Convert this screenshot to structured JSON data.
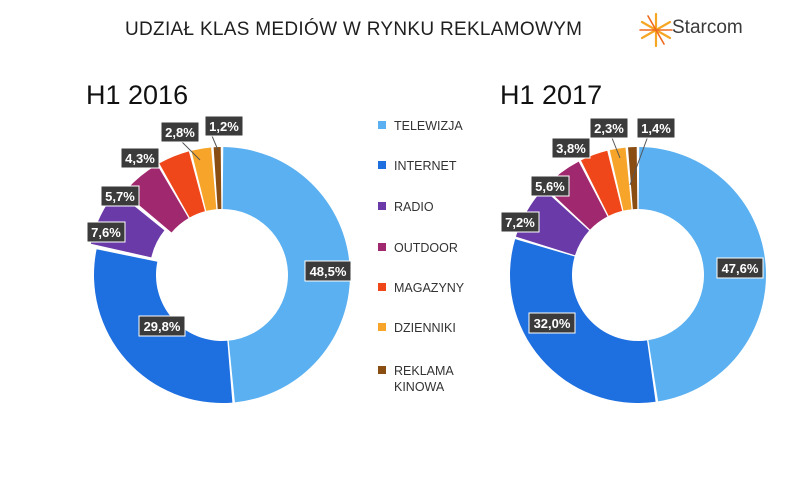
{
  "header": {
    "title": "UDZIAŁ KLAS MEDIÓW  W RYNKU REKLAMOWYM",
    "logo_text": "Starcom",
    "logo_icon": "starcom-star-icon"
  },
  "colors": {
    "TELEWIZJA": "#5AB0F0",
    "INTERNET": "#1E6FE0",
    "RADIO": "#6A3AA8",
    "OUTDOOR": "#A0286E",
    "MAGAZYNY": "#F0471A",
    "DZIENNIKI": "#F7A52A",
    "REKLAMA KINOWA": "#8A4E12"
  },
  "chart_data": [
    {
      "type": "pie",
      "subtype": "donut",
      "title": "H1 2016",
      "categories": [
        "TELEWIZJA",
        "INTERNET",
        "RADIO",
        "OUTDOOR",
        "MAGAZYNY",
        "DZIENNIKI",
        "REKLAMA KINOWA"
      ],
      "values": [
        48.5,
        29.8,
        7.6,
        5.7,
        4.3,
        2.8,
        1.2
      ],
      "labels": [
        "48,5%",
        "29,8%",
        "7,6%",
        "5,7%",
        "4,3%",
        "2,8%",
        "1,2%"
      ],
      "legend": "center"
    },
    {
      "type": "pie",
      "subtype": "donut",
      "title": "H1 2017",
      "categories": [
        "TELEWIZJA",
        "INTERNET",
        "RADIO",
        "OUTDOOR",
        "MAGAZYNY",
        "DZIENNIKI",
        "REKLAMA KINOWA"
      ],
      "values": [
        47.6,
        32.0,
        7.2,
        5.6,
        3.8,
        2.3,
        1.4
      ],
      "labels": [
        "47,6%",
        "32,0%",
        "7,2%",
        "5,6%",
        "3,8%",
        "2,3%",
        "1,4%"
      ],
      "legend": "center"
    }
  ],
  "legend": {
    "items": [
      {
        "label": "TELEWIZJA",
        "key": "TELEWIZJA"
      },
      {
        "label": "INTERNET",
        "key": "INTERNET"
      },
      {
        "label": "RADIO",
        "key": "RADIO"
      },
      {
        "label": "OUTDOOR",
        "key": "OUTDOOR"
      },
      {
        "label": "MAGAZYNY",
        "key": "MAGAZYNY"
      },
      {
        "label": "DZIENNIKI",
        "key": "DZIENNIKI"
      },
      {
        "label": "REKLAMA KINOWA",
        "key": "REKLAMA KINOWA"
      }
    ]
  }
}
